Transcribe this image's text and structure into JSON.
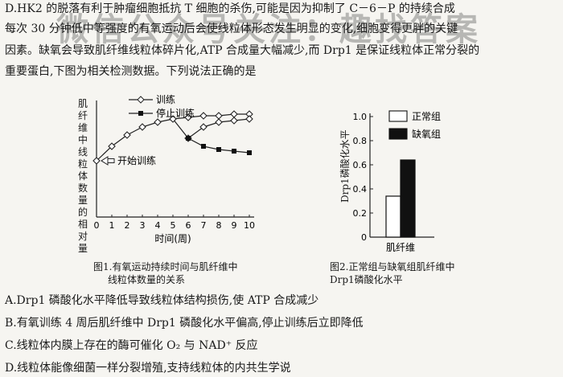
{
  "question": {
    "line1": "D.HK2 的脱落有利于肿瘤细胞抵抗 T 细胞的杀伤,可能是因为抑制了 C－6－P 的持续合成",
    "line2": "每次 30 分钟低中等强度的有氧运动后会使线粒体形态发生明显的变化,细胞变得更胖的关键",
    "line3": "因素。缺氧会导致肌纤维线粒体碎片化,ATP 合成量大幅减少,而 Drp1 是保证线粒体正常分裂的",
    "line4": "重要蛋白,下图为相关检测数据。下列说法正确的是"
  },
  "watermark": "微信公众号关注：趣找答案",
  "chart_data": [
    {
      "type": "line",
      "ylabel": "肌纤维中线粒体数量的相对量",
      "xlabel": "时间(周)",
      "x": [
        0,
        1,
        2,
        3,
        4,
        5,
        6,
        7,
        8,
        9,
        10
      ],
      "ylim": [
        0,
        7
      ],
      "series": [
        {
          "name": "训练",
          "marker": "open-diamond",
          "points": [
            [
              0,
              3.5
            ],
            [
              1,
              4.4
            ],
            [
              2,
              5.1
            ],
            [
              3,
              5.6
            ],
            [
              4,
              5.9
            ],
            [
              5,
              6.1
            ],
            [
              6,
              6.2
            ],
            [
              7,
              6.3
            ],
            [
              8,
              6.3
            ],
            [
              9,
              6.4
            ],
            [
              10,
              6.4
            ]
          ]
        },
        {
          "name": "停止训练",
          "marker": "filled-square",
          "points": [
            [
              5,
              6.1
            ],
            [
              6,
              4.9
            ],
            [
              7,
              4.4
            ],
            [
              8,
              4.2
            ],
            [
              9,
              4.1
            ],
            [
              10,
              4.0
            ]
          ]
        }
      ],
      "branch": {
        "marker": "open-diamond",
        "points": [
          [
            6,
            4.9
          ],
          [
            7,
            5.6
          ],
          [
            8,
            5.9
          ],
          [
            9,
            6.0
          ],
          [
            10,
            6.1
          ]
        ]
      },
      "annotation": "开始训练",
      "caption_line1": "图1.有氧运动持续时间与肌纤维中",
      "caption_line2": "线粒体数量的关系"
    },
    {
      "type": "bar",
      "ylabel": "Drp1磷酸化水平",
      "category": "肌纤维",
      "yticks": [
        "0",
        "0.2",
        "0.4",
        "0.6",
        "0.8",
        "1.0"
      ],
      "ylim": [
        0,
        1.0
      ],
      "series": [
        {
          "name": "正常组",
          "value": 0.34,
          "color": "#ffffff"
        },
        {
          "name": "缺氧组",
          "value": 0.64,
          "color": "#111111"
        }
      ],
      "caption_line1": "图2.正常组与缺氧组肌纤维中",
      "caption_line2": "Drp1磷酸化水平"
    }
  ],
  "options": {
    "A": "A.Drp1 磷酸化水平降低导致线粒体结构损伤,使 ATP 合成减少",
    "B": "B.有氧训练 4 周后肌纤维中 Drp1 磷酸化水平偏高,停止训练后立即降低",
    "C": "C.线粒体内膜上存在的酶可催化 O₂ 与 NAD⁺ 反应",
    "D": "D.线粒体能像细菌一样分裂增殖,支持线粒体的内共生学说"
  }
}
